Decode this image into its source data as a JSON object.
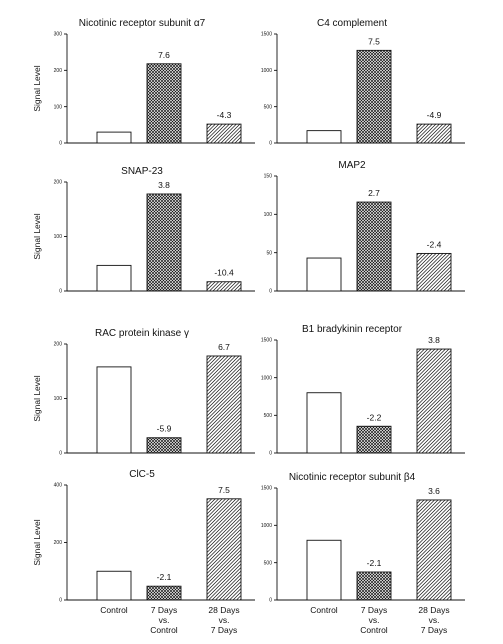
{
  "chart_data": [
    {
      "type": "bar",
      "title": "Nicotinic receptor subunit α7",
      "ylabel": "Signal Level",
      "categories": [
        "Control",
        "7 Days vs. Control",
        "28 Days vs. 7 Days"
      ],
      "values": [
        30,
        218,
        52
      ],
      "data_labels": [
        "",
        "7.6",
        "-4.3"
      ],
      "ylim": [
        0,
        300
      ],
      "yticks": [
        "0",
        "100",
        "200",
        "300"
      ]
    },
    {
      "type": "bar",
      "title": "C4 complement",
      "ylabel": "",
      "categories": [
        "Control",
        "7 Days vs. Control",
        "28 Days vs. 7 Days"
      ],
      "values": [
        170,
        1275,
        260
      ],
      "data_labels": [
        "",
        "7.5",
        "-4.9"
      ],
      "ylim": [
        0,
        1500
      ],
      "yticks": [
        "0",
        "500",
        "1000",
        "1500"
      ]
    },
    {
      "type": "bar",
      "title": "SNAP-23",
      "ylabel": "Signal Level",
      "categories": [
        "Control",
        "7 Days vs. Control",
        "28 Days vs. 7 Days"
      ],
      "values": [
        47,
        178,
        17
      ],
      "data_labels": [
        "",
        "3.8",
        "-10.4"
      ],
      "ylim": [
        0,
        200
      ],
      "yticks": [
        "0",
        "100",
        "200"
      ]
    },
    {
      "type": "bar",
      "title": "MAP2",
      "ylabel": "",
      "categories": [
        "Control",
        "7 Days vs. Control",
        "28 Days vs. 7 Days"
      ],
      "values": [
        43,
        116,
        49
      ],
      "data_labels": [
        "",
        "2.7",
        "-2.4"
      ],
      "ylim": [
        0,
        150
      ],
      "yticks": [
        "0",
        "50",
        "100",
        "150"
      ]
    },
    {
      "type": "bar",
      "title": "RAC protein kinase γ",
      "ylabel": "Signal Level",
      "categories": [
        "Control",
        "7 Days vs. Control",
        "28 Days vs. 7 Days"
      ],
      "values": [
        158,
        28,
        178
      ],
      "data_labels": [
        "",
        "-5.9",
        "6.7"
      ],
      "ylim": [
        0,
        200
      ],
      "yticks": [
        "0",
        "100",
        "200"
      ]
    },
    {
      "type": "bar",
      "title": "B1 bradykinin receptor",
      "ylabel": "",
      "categories": [
        "Control",
        "7 Days vs. Control",
        "28 Days vs. 7 Days"
      ],
      "values": [
        800,
        355,
        1380
      ],
      "data_labels": [
        "",
        "-2.2",
        "3.8"
      ],
      "ylim": [
        0,
        1500
      ],
      "yticks": [
        "0",
        "500",
        "1000",
        "1500"
      ]
    },
    {
      "type": "bar",
      "title": "ClC-5",
      "ylabel": "Signal Level",
      "categories": [
        "Control",
        "7 Days vs. Control",
        "28 Days vs. 7 Days"
      ],
      "values": [
        100,
        48,
        352
      ],
      "data_labels": [
        "",
        "-2.1",
        "7.5"
      ],
      "ylim": [
        0,
        400
      ],
      "yticks": [
        "0",
        "200",
        "400"
      ]
    },
    {
      "type": "bar",
      "title": "Nicotinic receptor subunit β4",
      "ylabel": "",
      "categories": [
        "Control",
        "7 Days vs. Control",
        "28 Days vs. 7 Days"
      ],
      "values": [
        800,
        375,
        1340
      ],
      "data_labels": [
        "",
        "-2.1",
        "3.6"
      ],
      "ylim": [
        0,
        1500
      ],
      "yticks": [
        "0",
        "500",
        "1000",
        "1500"
      ]
    }
  ],
  "x_category_lines": [
    [
      "Control"
    ],
    [
      "7 Days",
      "vs.",
      "Control"
    ],
    [
      "28 Days",
      "vs.",
      "7 Days"
    ]
  ],
  "colors": {
    "ink": "#111111",
    "background": "#ffffff"
  }
}
